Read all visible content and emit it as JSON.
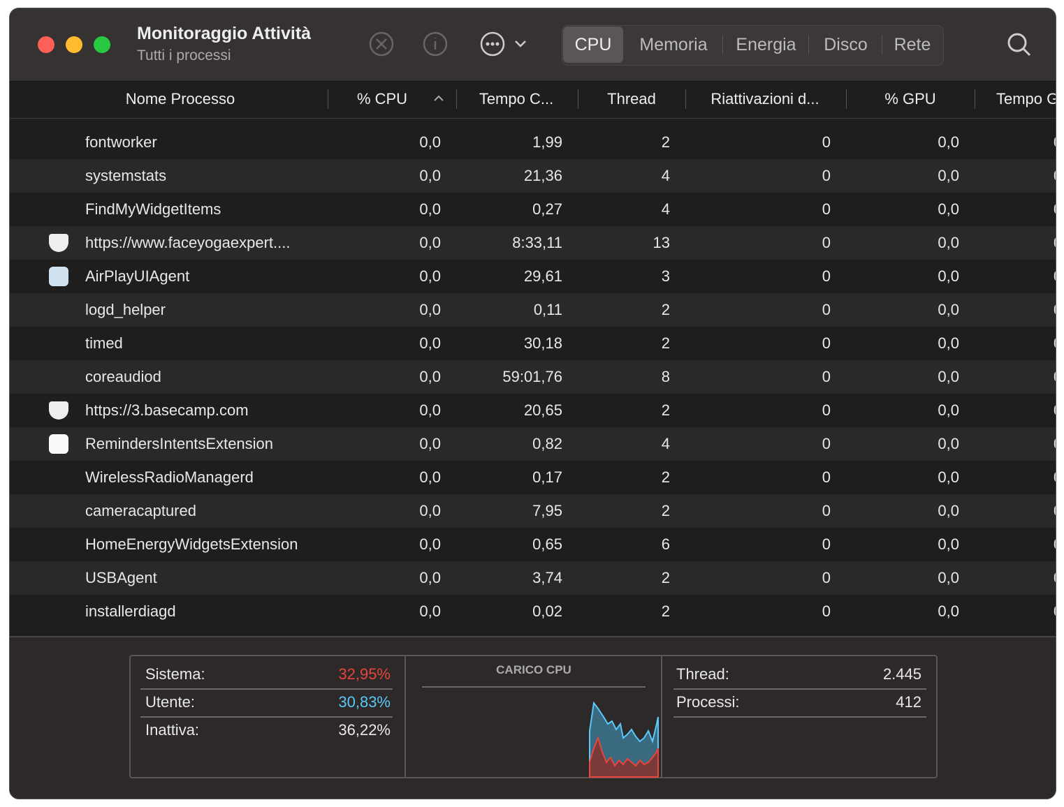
{
  "header": {
    "title": "Monitoraggio Attività",
    "subtitle": "Tutti i processi",
    "tabs": [
      "CPU",
      "Memoria",
      "Energia",
      "Disco",
      "Rete"
    ]
  },
  "table": {
    "columns": [
      "Nome Processo",
      "% CPU",
      "Tempo C...",
      "Thread",
      "Riattivazioni d...",
      "% GPU",
      "Tempo G"
    ],
    "rows": [
      [
        "fontworker",
        "0,0",
        "1,99",
        "2",
        "0",
        "0,0"
      ],
      [
        "systemstats",
        "0,0",
        "21,36",
        "4",
        "0",
        "0,0"
      ],
      [
        "FindMyWidgetItems",
        "0,0",
        "0,27",
        "4",
        "0",
        "0,0"
      ],
      [
        "https://www.faceyogaexpert....",
        "0,0",
        "8:33,11",
        "13",
        "0",
        "0,0"
      ],
      [
        "AirPlayUIAgent",
        "0,0",
        "29,61",
        "3",
        "0",
        "0,0"
      ],
      [
        "logd_helper",
        "0,0",
        "0,11",
        "2",
        "0",
        "0,0"
      ],
      [
        "timed",
        "0,0",
        "30,18",
        "2",
        "0",
        "0,0"
      ],
      [
        "coreaudiod",
        "0,0",
        "59:01,76",
        "8",
        "0",
        "0,0"
      ],
      [
        "https://3.basecamp.com",
        "0,0",
        "20,65",
        "2",
        "0",
        "0,0"
      ],
      [
        "RemindersIntentsExtension",
        "0,0",
        "0,82",
        "4",
        "0",
        "0,0"
      ],
      [
        "WirelessRadioManagerd",
        "0,0",
        "0,17",
        "2",
        "0",
        "0,0"
      ],
      [
        "cameracaptured",
        "0,0",
        "7,95",
        "2",
        "0",
        "0,0"
      ],
      [
        "HomeEnergyWidgetsExtension",
        "0,0",
        "0,65",
        "6",
        "0",
        "0,0"
      ],
      [
        "USBAgent",
        "0,0",
        "3,74",
        "2",
        "0",
        "0,0"
      ],
      [
        "installerdiagd",
        "0,0",
        "0,02",
        "2",
        "0",
        "0,0"
      ]
    ]
  },
  "footer": {
    "load": [
      [
        "Sistema:",
        "32,95%"
      ],
      [
        "Utente:",
        "30,83%"
      ],
      [
        "Inattiva:",
        "36,22%"
      ]
    ],
    "chart_title": "CARICO CPU",
    "counts": [
      [
        "Thread:",
        "2.445"
      ],
      [
        "Processi:",
        "412"
      ]
    ]
  }
}
